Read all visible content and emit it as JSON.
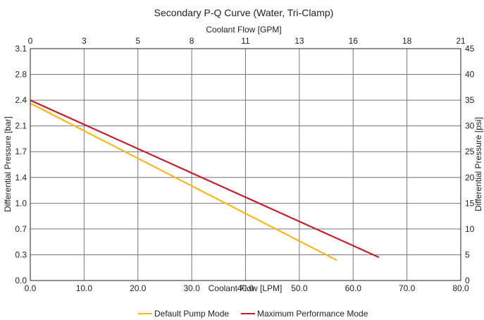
{
  "chart_data": {
    "type": "line",
    "title": "Secondary P-Q Curve (Water, Tri-Clamp)",
    "xlabel": "Coolant Flow [LPM]",
    "x2label": "Coolant Flow [GPM]",
    "ylabel": "Differential Pressure [bar]",
    "y2label": "Differential Pressure [psi]",
    "xlim": [
      0,
      80
    ],
    "ylim": [
      0,
      3.1
    ],
    "x2lim": [
      0,
      21
    ],
    "y2lim": [
      0,
      45
    ],
    "x_ticks": [
      "0.0",
      "10.0",
      "20.0",
      "30.0",
      "40.0",
      "50.0",
      "60.0",
      "70.0",
      "80.0"
    ],
    "x_tick_values": [
      0,
      10,
      20,
      30,
      40,
      50,
      60,
      70,
      80
    ],
    "y_ticks": [
      "0.0",
      "0.3",
      "0.7",
      "1.0",
      "1.4",
      "1.7",
      "2.1",
      "2.4",
      "2.8",
      "3.1"
    ],
    "x2_ticks": [
      "0",
      "3",
      "5",
      "8",
      "11",
      "13",
      "16",
      "18",
      "21"
    ],
    "y2_ticks": [
      "0",
      "5",
      "10",
      "15",
      "20",
      "25",
      "30",
      "35",
      "40",
      "45"
    ],
    "grid": true,
    "legend_position": "bottom-center",
    "series": [
      {
        "name": "Default Pump Mode",
        "color": "#F5B820",
        "x": [
          0,
          57.0
        ],
        "y": [
          2.37,
          0.27
        ]
      },
      {
        "name": "Maximum Performance Mode",
        "color": "#C0202F",
        "x": [
          0,
          64.8
        ],
        "y": [
          2.41,
          0.31
        ]
      }
    ]
  }
}
